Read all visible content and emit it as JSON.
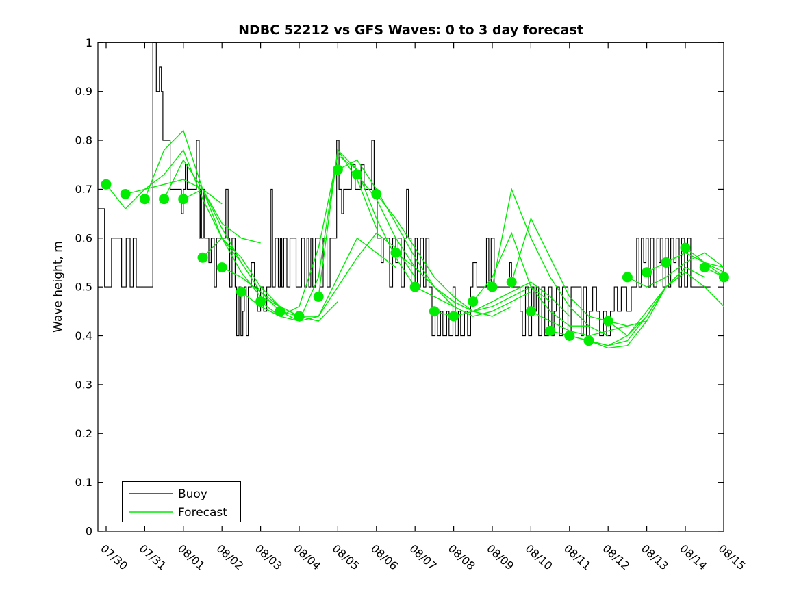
{
  "chart_data": {
    "type": "line",
    "title": "NDBC 52212 vs GFS Waves: 0 to 3 day forecast",
    "xlabel": "",
    "ylabel": "Wave height, m",
    "ylim": [
      0,
      1
    ],
    "ytick_labels": [
      "0",
      "0.1",
      "0.2",
      "0.3",
      "0.4",
      "0.5",
      "0.6",
      "0.7",
      "0.8",
      "0.9",
      "1"
    ],
    "xtick_labels": [
      "07/30",
      "07/31",
      "08/01",
      "08/02",
      "08/03",
      "08/04",
      "08/05",
      "08/06",
      "08/07",
      "08/08",
      "08/09",
      "08/10",
      "08/11",
      "08/12",
      "08/13",
      "08/14",
      "08/15"
    ],
    "xlim_days": [
      -0.213,
      16
    ],
    "x_tick_interval_days": 1,
    "grid": false,
    "legend": {
      "position": "southwest",
      "entries": [
        {
          "label": "Buoy",
          "color": "#000000"
        },
        {
          "label": "Forecast",
          "color": "#00ec00"
        }
      ]
    },
    "series": {
      "buoy": {
        "name": "Buoy",
        "color": "#000000",
        "style": "step",
        "end_day": 15.65,
        "points": [
          [
            -0.21,
            0.66
          ],
          [
            -0.04,
            0.5
          ],
          [
            0.14,
            0.6
          ],
          [
            0.4,
            0.5
          ],
          [
            0.52,
            0.6
          ],
          [
            0.62,
            0.5
          ],
          [
            0.7,
            0.6
          ],
          [
            0.78,
            0.5
          ],
          [
            1.21,
            1.0
          ],
          [
            1.3,
            0.9
          ],
          [
            1.38,
            0.95
          ],
          [
            1.43,
            0.9
          ],
          [
            1.47,
            0.8
          ],
          [
            1.66,
            0.7
          ],
          [
            1.95,
            0.65
          ],
          [
            2.0,
            0.7
          ],
          [
            2.05,
            0.75
          ],
          [
            2.1,
            0.7
          ],
          [
            2.34,
            0.8
          ],
          [
            2.41,
            0.6
          ],
          [
            2.44,
            0.7
          ],
          [
            2.47,
            0.6
          ],
          [
            2.52,
            0.7
          ],
          [
            2.55,
            0.6
          ],
          [
            2.66,
            0.55
          ],
          [
            2.72,
            0.6
          ],
          [
            2.8,
            0.5
          ],
          [
            2.86,
            0.6
          ],
          [
            3.1,
            0.7
          ],
          [
            3.16,
            0.6
          ],
          [
            3.2,
            0.5
          ],
          [
            3.26,
            0.6
          ],
          [
            3.34,
            0.5
          ],
          [
            3.38,
            0.4
          ],
          [
            3.44,
            0.5
          ],
          [
            3.49,
            0.4
          ],
          [
            3.54,
            0.45
          ],
          [
            3.58,
            0.5
          ],
          [
            3.63,
            0.4
          ],
          [
            3.68,
            0.5
          ],
          [
            3.76,
            0.55
          ],
          [
            3.84,
            0.5
          ],
          [
            3.92,
            0.45
          ],
          [
            4.0,
            0.5
          ],
          [
            4.08,
            0.45
          ],
          [
            4.16,
            0.5
          ],
          [
            4.27,
            0.7
          ],
          [
            4.31,
            0.5
          ],
          [
            4.38,
            0.6
          ],
          [
            4.46,
            0.5
          ],
          [
            4.51,
            0.6
          ],
          [
            4.55,
            0.5
          ],
          [
            4.6,
            0.6
          ],
          [
            4.68,
            0.5
          ],
          [
            4.76,
            0.6
          ],
          [
            4.92,
            0.5
          ],
          [
            5.06,
            0.6
          ],
          [
            5.14,
            0.5
          ],
          [
            5.2,
            0.6
          ],
          [
            5.25,
            0.5
          ],
          [
            5.3,
            0.6
          ],
          [
            5.35,
            0.5
          ],
          [
            5.42,
            0.6
          ],
          [
            5.54,
            0.5
          ],
          [
            5.62,
            0.6
          ],
          [
            5.72,
            0.5
          ],
          [
            5.8,
            0.6
          ],
          [
            5.97,
            0.8
          ],
          [
            6.03,
            0.7
          ],
          [
            6.1,
            0.65
          ],
          [
            6.15,
            0.7
          ],
          [
            6.35,
            0.75
          ],
          [
            6.45,
            0.7
          ],
          [
            6.6,
            0.75
          ],
          [
            6.68,
            0.7
          ],
          [
            6.88,
            0.8
          ],
          [
            6.94,
            0.7
          ],
          [
            7.02,
            0.6
          ],
          [
            7.12,
            0.55
          ],
          [
            7.18,
            0.6
          ],
          [
            7.34,
            0.5
          ],
          [
            7.42,
            0.6
          ],
          [
            7.5,
            0.55
          ],
          [
            7.56,
            0.6
          ],
          [
            7.64,
            0.5
          ],
          [
            7.72,
            0.6
          ],
          [
            7.78,
            0.7
          ],
          [
            7.83,
            0.6
          ],
          [
            7.9,
            0.5
          ],
          [
            8.0,
            0.6
          ],
          [
            8.06,
            0.5
          ],
          [
            8.14,
            0.6
          ],
          [
            8.22,
            0.5
          ],
          [
            8.28,
            0.6
          ],
          [
            8.36,
            0.5
          ],
          [
            8.44,
            0.4
          ],
          [
            8.52,
            0.45
          ],
          [
            8.58,
            0.4
          ],
          [
            8.66,
            0.45
          ],
          [
            8.72,
            0.4
          ],
          [
            8.82,
            0.45
          ],
          [
            8.88,
            0.4
          ],
          [
            8.98,
            0.5
          ],
          [
            9.04,
            0.4
          ],
          [
            9.12,
            0.45
          ],
          [
            9.18,
            0.4
          ],
          [
            9.28,
            0.45
          ],
          [
            9.36,
            0.4
          ],
          [
            9.44,
            0.5
          ],
          [
            9.5,
            0.55
          ],
          [
            9.6,
            0.5
          ],
          [
            9.85,
            0.6
          ],
          [
            9.91,
            0.5
          ],
          [
            9.97,
            0.6
          ],
          [
            10.05,
            0.5
          ],
          [
            10.45,
            0.55
          ],
          [
            10.5,
            0.5
          ],
          [
            10.72,
            0.45
          ],
          [
            10.78,
            0.4
          ],
          [
            10.86,
            0.5
          ],
          [
            10.94,
            0.4
          ],
          [
            11.02,
            0.5
          ],
          [
            11.08,
            0.45
          ],
          [
            11.14,
            0.5
          ],
          [
            11.2,
            0.4
          ],
          [
            11.28,
            0.5
          ],
          [
            11.36,
            0.4
          ],
          [
            11.46,
            0.5
          ],
          [
            11.54,
            0.4
          ],
          [
            11.6,
            0.45
          ],
          [
            11.66,
            0.5
          ],
          [
            11.74,
            0.4
          ],
          [
            11.82,
            0.5
          ],
          [
            11.96,
            0.4
          ],
          [
            12.04,
            0.5
          ],
          [
            12.3,
            0.4
          ],
          [
            12.36,
            0.5
          ],
          [
            12.44,
            0.4
          ],
          [
            12.52,
            0.45
          ],
          [
            12.6,
            0.5
          ],
          [
            12.7,
            0.45
          ],
          [
            12.78,
            0.4
          ],
          [
            12.88,
            0.45
          ],
          [
            12.96,
            0.4
          ],
          [
            13.06,
            0.45
          ],
          [
            13.16,
            0.5
          ],
          [
            13.24,
            0.45
          ],
          [
            13.34,
            0.5
          ],
          [
            13.48,
            0.45
          ],
          [
            13.6,
            0.5
          ],
          [
            13.74,
            0.6
          ],
          [
            13.8,
            0.5
          ],
          [
            13.86,
            0.6
          ],
          [
            13.92,
            0.55
          ],
          [
            13.98,
            0.6
          ],
          [
            14.04,
            0.5
          ],
          [
            14.1,
            0.6
          ],
          [
            14.18,
            0.5
          ],
          [
            14.26,
            0.6
          ],
          [
            14.32,
            0.55
          ],
          [
            14.36,
            0.6
          ],
          [
            14.42,
            0.5
          ],
          [
            14.48,
            0.6
          ],
          [
            14.56,
            0.5
          ],
          [
            14.62,
            0.6
          ],
          [
            14.7,
            0.55
          ],
          [
            14.76,
            0.6
          ],
          [
            14.84,
            0.5
          ],
          [
            14.9,
            0.6
          ],
          [
            14.98,
            0.5
          ],
          [
            15.06,
            0.6
          ],
          [
            15.14,
            0.5
          ],
          [
            15.65,
            0.5
          ]
        ]
      },
      "forecast": {
        "name": "Forecast",
        "color": "#00ec00",
        "marker": "filled-circle-at-run-start",
        "marker_radius": 7.5,
        "run_interval_days": 0.5,
        "runs": [
          {
            "t0": 0.0,
            "dt": 0.5,
            "v": [
              0.71,
              0.66,
              0.7,
              0.71,
              0.72,
              0.7,
              0.67
            ]
          },
          {
            "t0": 0.5,
            "dt": 0.5,
            "v": [
              0.69,
              0.7,
              0.73,
              0.78,
              0.68,
              0.6,
              0.55
            ]
          },
          {
            "t0": 1.0,
            "dt": 0.5,
            "v": [
              0.68,
              0.78,
              0.82,
              0.7,
              0.63,
              0.6,
              0.59
            ]
          },
          {
            "t0": 1.5,
            "dt": 0.5,
            "v": [
              0.68,
              0.76,
              0.7,
              0.6,
              0.53,
              0.48,
              0.46
            ]
          },
          {
            "t0": 2.0,
            "dt": 0.5,
            "v": [
              0.68,
              0.7,
              0.62,
              0.55,
              0.49,
              0.45,
              0.44
            ]
          },
          {
            "t0": 2.5,
            "dt": 0.5,
            "v": [
              0.56,
              0.6,
              0.56,
              0.5,
              0.46,
              0.44,
              0.43
            ]
          },
          {
            "t0": 3.0,
            "dt": 0.5,
            "v": [
              0.54,
              0.52,
              0.49,
              0.46,
              0.44,
              0.43,
              0.47
            ]
          },
          {
            "t0": 3.5,
            "dt": 0.5,
            "v": [
              0.49,
              0.46,
              0.44,
              0.46,
              0.58,
              0.77,
              0.74
            ]
          },
          {
            "t0": 4.0,
            "dt": 0.5,
            "v": [
              0.47,
              0.44,
              0.43,
              0.52,
              0.78,
              0.72,
              0.62
            ]
          },
          {
            "t0": 4.5,
            "dt": 0.5,
            "v": [
              0.45,
              0.43,
              0.44,
              0.52,
              0.6,
              0.57,
              0.54
            ]
          },
          {
            "t0": 5.0,
            "dt": 0.5,
            "v": [
              0.44,
              0.44,
              0.5,
              0.56,
              0.61,
              0.58,
              0.52
            ]
          },
          {
            "t0": 5.5,
            "dt": 0.5,
            "v": [
              0.48,
              0.78,
              0.74,
              0.64,
              0.56,
              0.5,
              0.48
            ]
          },
          {
            "t0": 6.0,
            "dt": 0.5,
            "v": [
              0.74,
              0.76,
              0.7,
              0.63,
              0.56,
              0.5,
              0.46
            ]
          },
          {
            "t0": 6.5,
            "dt": 0.5,
            "v": [
              0.73,
              0.68,
              0.6,
              0.54,
              0.5,
              0.46,
              0.44
            ]
          },
          {
            "t0": 7.0,
            "dt": 0.5,
            "v": [
              0.69,
              0.64,
              0.58,
              0.52,
              0.48,
              0.45,
              0.44
            ]
          },
          {
            "t0": 7.5,
            "dt": 0.5,
            "v": [
              0.57,
              0.54,
              0.5,
              0.47,
              0.45,
              0.44,
              0.46
            ]
          },
          {
            "t0": 8.0,
            "dt": 0.5,
            "v": [
              0.5,
              0.48,
              0.46,
              0.44,
              0.45,
              0.47,
              0.49
            ]
          },
          {
            "t0": 8.5,
            "dt": 0.5,
            "v": [
              0.45,
              0.44,
              0.45,
              0.46,
              0.48,
              0.5,
              0.47
            ]
          },
          {
            "t0": 9.0,
            "dt": 0.5,
            "v": [
              0.44,
              0.45,
              0.47,
              0.49,
              0.51,
              0.48,
              0.44
            ]
          },
          {
            "t0": 9.5,
            "dt": 0.5,
            "v": [
              0.47,
              0.52,
              0.61,
              0.5,
              0.45,
              0.42,
              0.42
            ]
          },
          {
            "t0": 10.0,
            "dt": 0.5,
            "v": [
              0.5,
              0.7,
              0.6,
              0.52,
              0.46,
              0.42,
              0.4
            ]
          },
          {
            "t0": 10.5,
            "dt": 0.5,
            "v": [
              0.51,
              0.64,
              0.56,
              0.48,
              0.44,
              0.43,
              0.42
            ]
          },
          {
            "t0": 11.0,
            "dt": 0.5,
            "v": [
              0.45,
              0.43,
              0.41,
              0.4,
              0.41,
              0.42,
              0.43
            ]
          },
          {
            "t0": 11.5,
            "dt": 0.5,
            "v": [
              0.41,
              0.4,
              0.39,
              0.38,
              0.4,
              0.45,
              0.5
            ]
          },
          {
            "t0": 12.0,
            "dt": 0.5,
            "v": [
              0.4,
              0.39,
              0.38,
              0.39,
              0.44,
              0.5,
              0.53
            ]
          },
          {
            "t0": 12.5,
            "dt": 0.5,
            "v": [
              0.39,
              0.375,
              0.38,
              0.43,
              0.5,
              0.54,
              0.52
            ]
          },
          {
            "t0": 13.0,
            "dt": 0.5,
            "v": [
              0.43,
              0.4,
              0.44,
              0.5,
              0.53,
              0.5,
              0.46
            ]
          },
          {
            "t0": 13.5,
            "dt": 0.5,
            "v": [
              0.52,
              0.5,
              0.52,
              0.55,
              0.57,
              0.54
            ]
          },
          {
            "t0": 14.0,
            "dt": 0.5,
            "v": [
              0.53,
              0.55,
              0.57,
              0.55,
              0.52
            ]
          },
          {
            "t0": 14.5,
            "dt": 0.5,
            "v": [
              0.55,
              0.57,
              0.55,
              0.53
            ]
          },
          {
            "t0": 15.0,
            "dt": 0.5,
            "v": [
              0.58,
              0.55,
              0.54
            ]
          },
          {
            "t0": 15.5,
            "dt": 0.5,
            "v": [
              0.54,
              0.52
            ]
          },
          {
            "t0": 16.0,
            "dt": 0.5,
            "v": [
              0.52
            ]
          }
        ]
      }
    }
  }
}
